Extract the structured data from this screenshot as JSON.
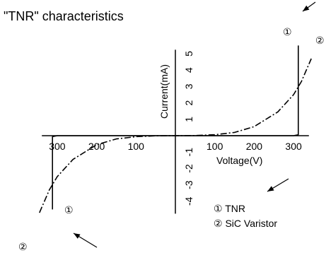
{
  "chart_data": {
    "type": "line",
    "title": "\"TNR\" characteristics",
    "xlabel": "Voltage(V)",
    "ylabel": "Current(mA)",
    "xlim": [
      -330,
      330
    ],
    "ylim": [
      -4.5,
      5.5
    ],
    "x_ticks": [
      {
        "value": -300,
        "label": "300"
      },
      {
        "value": -200,
        "label": "200"
      },
      {
        "value": -100,
        "label": "100"
      },
      {
        "value": 100,
        "label": "100"
      },
      {
        "value": 200,
        "label": "200"
      },
      {
        "value": 300,
        "label": "300"
      }
    ],
    "y_ticks": [
      {
        "value": 5,
        "label": "5"
      },
      {
        "value": 4,
        "label": "4"
      },
      {
        "value": 3,
        "label": "3"
      },
      {
        "value": 2,
        "label": "2"
      },
      {
        "value": 1,
        "label": "1"
      },
      {
        "value": -1,
        "label": "-1"
      },
      {
        "value": -2,
        "label": "-2"
      },
      {
        "value": -3,
        "label": "-3"
      },
      {
        "value": -4,
        "label": "-4"
      }
    ],
    "series": [
      {
        "name": "TNR",
        "marker": "①",
        "style": "solid",
        "x": [
          -312,
          -312,
          -300,
          0,
          300,
          312,
          312
        ],
        "y": [
          -4.5,
          -0.06,
          0,
          0,
          0,
          0.06,
          5.5
        ]
      },
      {
        "name": "SiC Varistor",
        "marker": "②",
        "style": "dash-dot",
        "x": [
          -345,
          -320,
          -300,
          -260,
          -200,
          -150,
          -100,
          -50,
          0,
          50,
          100,
          150,
          200,
          260,
          300,
          320,
          345
        ],
        "y": [
          -4.7,
          -3.3,
          -2.5,
          -1.45,
          -0.55,
          -0.2,
          -0.06,
          -0.01,
          0,
          0.01,
          0.06,
          0.2,
          0.55,
          1.45,
          2.5,
          3.3,
          4.7
        ]
      }
    ],
    "legend": {
      "position": "bottom-right",
      "entries": [
        "① TNR",
        "② SiC Varistor"
      ]
    },
    "grid": false
  }
}
